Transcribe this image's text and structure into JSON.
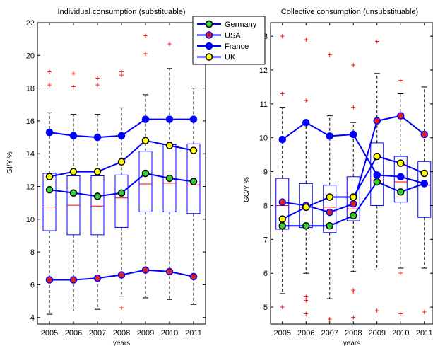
{
  "legend": {
    "placement": "top-center",
    "entries": [
      {
        "name": "Germany",
        "line_color": "#0000ff",
        "marker_face": "#33cc33",
        "marker_edge": "#000000"
      },
      {
        "name": "USA",
        "line_color": "#0000ff",
        "marker_face": "#e0201e",
        "marker_edge": "#0000ff"
      },
      {
        "name": "France",
        "line_color": "#0000ff",
        "marker_face": "#0000ff",
        "marker_edge": "#0000ff"
      },
      {
        "name": "UK",
        "line_color": "#0000ff",
        "marker_face": "#ffff00",
        "marker_edge": "#000000"
      }
    ]
  },
  "colors": {
    "series_line": "#0000ff",
    "box": "#0000ff",
    "median": "#ff0000",
    "outlier": "#ff0000",
    "whisker": "#000000"
  },
  "chart_data": [
    {
      "type": "box+line",
      "title": "Individual consumption (substituable)",
      "xlabel": "years",
      "ylabel": "GI/Y %",
      "x": [
        "2005",
        "2006",
        "2007",
        "2008",
        "2009",
        "2010",
        "2011"
      ],
      "ylim": [
        3.6,
        22
      ],
      "yticks": [
        4,
        6,
        8,
        10,
        12,
        14,
        16,
        18,
        20,
        22
      ],
      "grid": false,
      "boxes": [
        {
          "q1": 9.3,
          "median": 10.75,
          "q3": 12.8,
          "whisker_low": 4.2,
          "whisker_high": 16.5,
          "outliers": [
            18.2,
            19.0
          ]
        },
        {
          "q1": 9.05,
          "median": 10.85,
          "q3": 12.65,
          "whisker_low": 4.4,
          "whisker_high": 16.4,
          "outliers": [
            18.1,
            18.9
          ]
        },
        {
          "q1": 9.05,
          "median": 10.8,
          "q3": 12.65,
          "whisker_low": 4.5,
          "whisker_high": 16.4,
          "outliers": [
            18.2,
            18.6
          ]
        },
        {
          "q1": 9.5,
          "median": 11.3,
          "q3": 12.7,
          "whisker_low": 5.3,
          "whisker_high": 16.8,
          "outliers": [
            4.6,
            18.8,
            19.0
          ]
        },
        {
          "q1": 10.45,
          "median": 12.15,
          "q3": 14.15,
          "whisker_low": 5.2,
          "whisker_high": 17.6,
          "outliers": [
            20.1,
            21.2
          ]
        },
        {
          "q1": 10.45,
          "median": 12.2,
          "q3": 14.55,
          "whisker_low": 5.1,
          "whisker_high": 19.2,
          "outliers": [
            20.7
          ]
        },
        {
          "q1": 10.35,
          "median": 12.1,
          "q3": 14.6,
          "whisker_low": 4.8,
          "whisker_high": 18.0,
          "outliers": []
        }
      ],
      "series": [
        {
          "name": "Germany",
          "values": [
            11.8,
            11.6,
            11.4,
            11.6,
            12.8,
            12.5,
            12.3
          ]
        },
        {
          "name": "USA",
          "values": [
            6.3,
            6.3,
            6.4,
            6.6,
            6.9,
            6.8,
            6.5
          ]
        },
        {
          "name": "France",
          "values": [
            15.3,
            15.1,
            15.0,
            15.1,
            16.1,
            16.1,
            16.1
          ]
        },
        {
          "name": "UK",
          "values": [
            12.6,
            12.9,
            12.9,
            13.5,
            14.8,
            14.5,
            14.2
          ]
        }
      ]
    },
    {
      "type": "box+line",
      "title": "Collective consumption (unsubstituable)",
      "xlabel": "years",
      "ylabel": "GC/Y %",
      "x": [
        "2005",
        "2006",
        "2007",
        "2008",
        "2009",
        "2010",
        "2011"
      ],
      "ylim": [
        4.5,
        13.4
      ],
      "yticks": [
        5,
        6,
        7,
        8,
        9,
        10,
        11,
        12,
        13
      ],
      "grid": false,
      "boxes": [
        {
          "q1": 7.3,
          "median": 8.0,
          "q3": 8.8,
          "whisker_low": 5.4,
          "whisker_high": 10.9,
          "outliers": [
            5.0,
            11.3,
            13.0
          ]
        },
        {
          "q1": 7.35,
          "median": 7.95,
          "q3": 8.65,
          "whisker_low": 6.0,
          "whisker_high": 10.45,
          "outliers": [
            4.8,
            5.2,
            5.3,
            11.1,
            12.9
          ]
        },
        {
          "q1": 7.2,
          "median": 7.95,
          "q3": 8.6,
          "whisker_low": 5.25,
          "whisker_high": 10.65,
          "outliers": [
            4.65,
            12.45
          ]
        },
        {
          "q1": 7.55,
          "median": 7.9,
          "q3": 8.85,
          "whisker_low": 6.05,
          "whisker_high": 10.45,
          "outliers": [
            4.7,
            5.45,
            5.5,
            10.9,
            12.15
          ]
        },
        {
          "q1": 8.0,
          "median": 8.75,
          "q3": 9.85,
          "whisker_low": 6.1,
          "whisker_high": 11.9,
          "outliers": [
            4.9,
            12.85
          ]
        },
        {
          "q1": 8.1,
          "median": 8.7,
          "q3": 9.45,
          "whisker_low": 6.15,
          "whisker_high": 11.3,
          "outliers": [
            4.8,
            6.0,
            11.7
          ]
        },
        {
          "q1": 7.65,
          "median": 8.6,
          "q3": 9.3,
          "whisker_low": 6.15,
          "whisker_high": 11.5,
          "outliers": [
            4.85
          ]
        }
      ],
      "series": [
        {
          "name": "Germany",
          "values": [
            7.4,
            7.4,
            7.4,
            7.7,
            8.7,
            8.4,
            8.65
          ]
        },
        {
          "name": "USA",
          "values": [
            8.1,
            8.0,
            7.8,
            8.05,
            10.5,
            10.65,
            10.1
          ]
        },
        {
          "name": "France",
          "values": [
            9.95,
            10.45,
            10.05,
            10.1,
            8.9,
            8.85,
            8.65
          ]
        },
        {
          "name": "UK",
          "values": [
            7.6,
            7.95,
            8.25,
            8.25,
            9.45,
            9.25,
            8.95
          ]
        }
      ]
    }
  ]
}
